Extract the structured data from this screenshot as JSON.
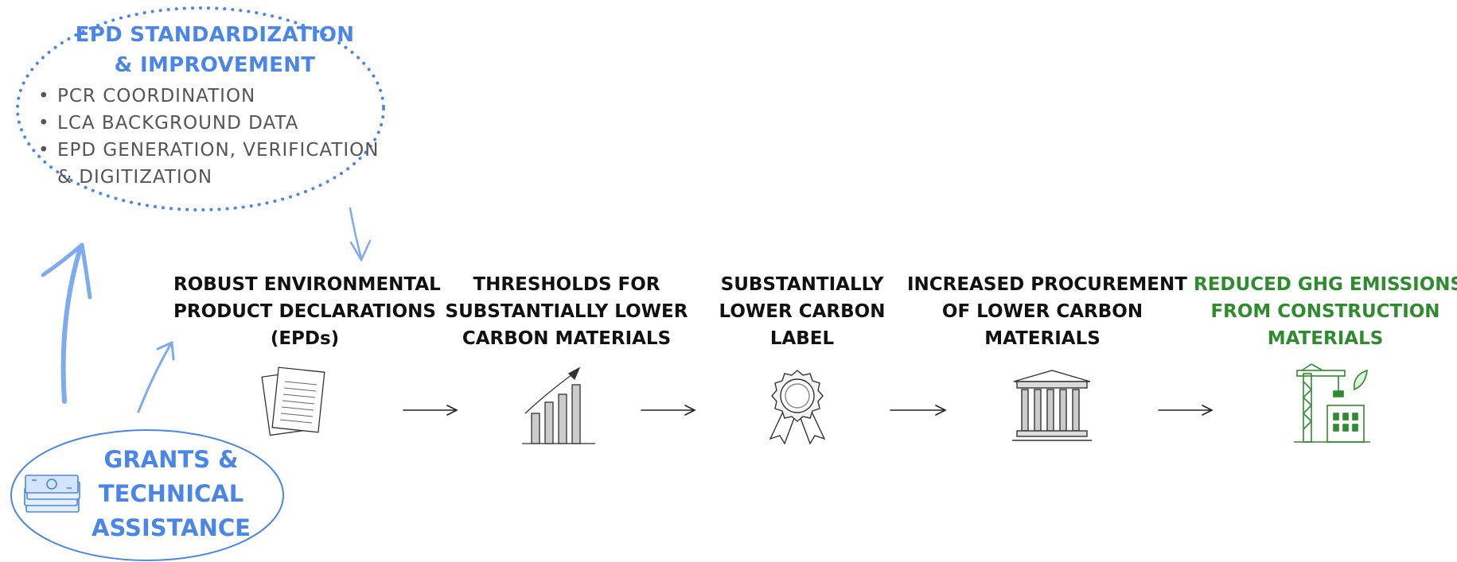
{
  "colors": {
    "accent_blue": "#4a86e8",
    "light_blue": "#7eaaf0",
    "text_dark": "#111111",
    "text_gray": "#555555",
    "outcome_green": "#2e8b2e"
  },
  "epd_box": {
    "title_line1": "EPD STANDARDIZATION",
    "title_line2": "& IMPROVEMENT",
    "items": [
      "PCR COORDINATION",
      "LCA BACKGROUND DATA",
      "EPD GENERATION, VERIFICATION",
      "& DIGITIZATION"
    ]
  },
  "steps": [
    {
      "lines": [
        "ROBUST ENVIRONMENTAL",
        "PRODUCT DECLARATIONS",
        "(EPDs)"
      ],
      "icon": "documents-icon"
    },
    {
      "lines": [
        "THRESHOLDS FOR",
        "SUBSTANTIALLY LOWER",
        "CARBON MATERIALS"
      ],
      "icon": "bar-chart-icon"
    },
    {
      "lines": [
        "SUBSTANTIALLY",
        "LOWER CARBON",
        "LABEL"
      ],
      "icon": "award-ribbon-icon"
    },
    {
      "lines": [
        "INCREASED PROCUREMENT",
        "OF LOWER CARBON",
        "MATERIALS"
      ],
      "icon": "government-building-icon"
    },
    {
      "lines": [
        "REDUCED GHG EMISSIONS",
        "FROM CONSTRUCTION",
        "MATERIALS"
      ],
      "icon": "construction-crane-icon"
    }
  ],
  "grants": {
    "lines": [
      "GRANTS &",
      "TECHNICAL",
      "ASSISTANCE"
    ],
    "icon": "money-stack-icon"
  }
}
